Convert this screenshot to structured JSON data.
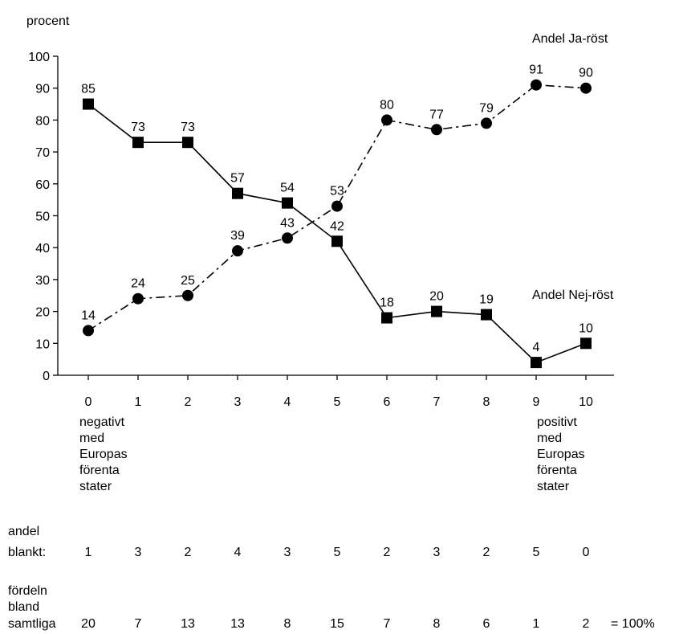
{
  "chart_data": {
    "type": "line",
    "ylabel": "procent",
    "ylim": [
      0,
      100
    ],
    "yticks": [
      "0",
      "10",
      "20",
      "30",
      "40",
      "50",
      "60",
      "70",
      "80",
      "90",
      "100"
    ],
    "categories": [
      "0",
      "1",
      "2",
      "3",
      "4",
      "5",
      "6",
      "7",
      "8",
      "9",
      "10"
    ],
    "series": [
      {
        "name": "Andel Ja-röst",
        "marker": "circle",
        "line_style": "dash-dot",
        "values": [
          14,
          24,
          25,
          39,
          43,
          53,
          80,
          77,
          79,
          91,
          90
        ]
      },
      {
        "name": "Andel Nej-röst",
        "marker": "square",
        "line_style": "solid",
        "values": [
          85,
          73,
          73,
          57,
          54,
          42,
          18,
          20,
          19,
          4,
          10
        ]
      }
    ],
    "annotations": {
      "left_end": [
        "negativt",
        "med",
        "Europas",
        "förenta",
        "stater"
      ],
      "right_end": [
        "positivt",
        "med",
        "Europas",
        "förenta",
        "stater"
      ]
    },
    "blank_row": {
      "label": [
        "andel",
        "blankt:"
      ],
      "values": [
        "1",
        "3",
        "2",
        "4",
        "3",
        "5",
        "2",
        "3",
        "2",
        "5",
        "0"
      ]
    },
    "distribution_row": {
      "label": [
        "fördeln",
        "bland",
        "samtliga"
      ],
      "values": [
        "20",
        "7",
        "13",
        "13",
        "8",
        "15",
        "7",
        "8",
        "6",
        "1",
        "2"
      ],
      "total": "= 100%"
    },
    "colors": {
      "ink": "#000000",
      "background": "#ffffff"
    }
  }
}
